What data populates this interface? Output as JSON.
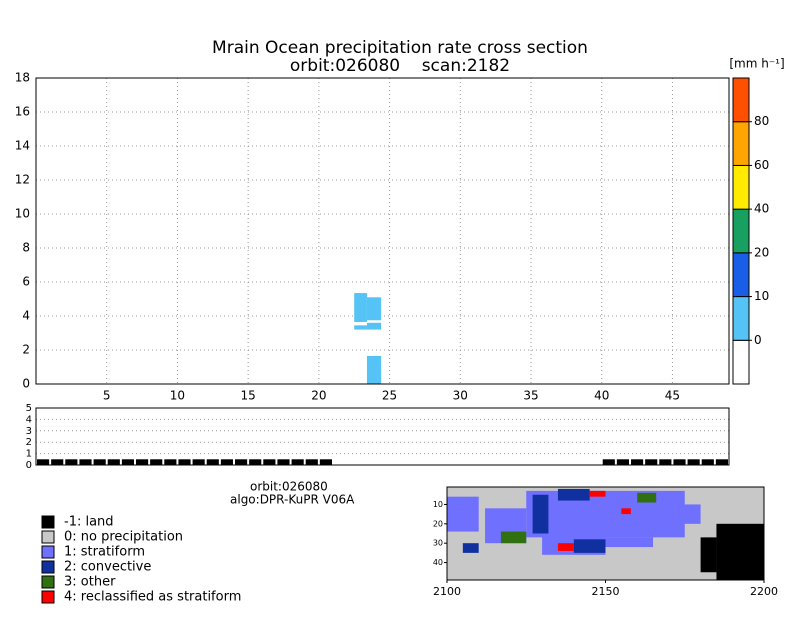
{
  "chart_data": [
    {
      "type": "heatmap",
      "title": [
        "Mrain Ocean precipitation rate cross section",
        "orbit:026080    scan:2182"
      ],
      "xlim": [
        0,
        49
      ],
      "xticks": [
        5,
        10,
        15,
        20,
        25,
        30,
        35,
        40,
        45
      ],
      "ylim": [
        0,
        18
      ],
      "yticks": [
        0,
        2,
        4,
        6,
        8,
        10,
        12,
        14,
        16,
        18
      ],
      "grid": true,
      "cells": [
        {
          "x0": 22.5,
          "x1": 23.4,
          "y0": 3.65,
          "y1": 5.35,
          "value": 5
        },
        {
          "x0": 23.4,
          "x1": 24.4,
          "y0": 3.75,
          "y1": 5.1,
          "value": 5
        },
        {
          "x0": 22.5,
          "x1": 23.4,
          "y0": 3.2,
          "y1": 3.45,
          "value": 5
        },
        {
          "x0": 23.4,
          "x1": 24.4,
          "y0": 3.2,
          "y1": 3.6,
          "value": 5
        },
        {
          "x0": 23.4,
          "x1": 24.4,
          "y0": 0,
          "y1": 1.65,
          "value": 5
        }
      ],
      "colorbar": {
        "unit": "[mm h⁻¹]",
        "levels": [
          0,
          10,
          20,
          40,
          60,
          80
        ],
        "colors": [
          "#ffffff",
          "#55c3f5",
          "#1a5ee8",
          "#17a060",
          "#ffeb00",
          "#ffa500",
          "#ff5000"
        ]
      }
    },
    {
      "type": "bar",
      "xlim": [
        0,
        49
      ],
      "ylim": [
        0,
        5
      ],
      "yticks": [
        0,
        1,
        2,
        3,
        4,
        5
      ],
      "grid": true,
      "color": "#000000",
      "x": [
        1,
        2,
        3,
        4,
        5,
        6,
        7,
        8,
        9,
        10,
        11,
        12,
        13,
        14,
        15,
        16,
        17,
        18,
        19,
        20,
        21,
        22,
        23,
        24,
        25,
        26,
        27,
        28,
        29,
        30,
        31,
        32,
        33,
        34,
        35,
        36,
        37,
        38,
        39,
        40,
        41,
        42,
        43,
        44,
        45,
        46,
        47,
        48,
        49
      ],
      "values": [
        0.5,
        0.5,
        0.5,
        0.5,
        0.5,
        0.5,
        0.5,
        0.5,
        0.5,
        0.5,
        0.5,
        0.5,
        0.5,
        0.5,
        0.5,
        0.5,
        0.5,
        0.5,
        0.5,
        0.5,
        0.5,
        0,
        0,
        0,
        0,
        0,
        0,
        0,
        0,
        0,
        0,
        0,
        0,
        0,
        0,
        0,
        0,
        0,
        0,
        0,
        0.5,
        0.5,
        0.5,
        0.5,
        0.5,
        0.5,
        0.5,
        0.5,
        0.5
      ]
    },
    {
      "type": "map",
      "annotations": [
        "orbit:026080",
        "algo:DPR-KuPR V06A"
      ],
      "xlim": [
        2100,
        2200
      ],
      "xticks": [
        2100,
        2150,
        2200
      ],
      "ylim": [
        49,
        1
      ],
      "yticks": [
        10,
        20,
        30,
        40
      ],
      "classes": [
        {
          "code": -1,
          "label": "-1: land",
          "color": "#000000"
        },
        {
          "code": 0,
          "label": "0: no precipitation",
          "color": "#c8c8c8"
        },
        {
          "code": 1,
          "label": "1: stratiform",
          "color": "#7070ff"
        },
        {
          "code": 2,
          "label": "2: convective",
          "color": "#1030a0"
        },
        {
          "code": 3,
          "label": "3: other",
          "color": "#307010"
        },
        {
          "code": 4,
          "label": "4: reclassified as stratiform",
          "color": "#ff0000"
        }
      ],
      "regions": [
        {
          "x0": 2100,
          "x1": 2200,
          "y0": 1,
          "y1": 49,
          "class": 0
        },
        {
          "x0": 2100,
          "x1": 2110,
          "y0": 6,
          "y1": 24,
          "class": 1
        },
        {
          "x0": 2112,
          "x1": 2125,
          "y0": 12,
          "y1": 30,
          "class": 1
        },
        {
          "x0": 2125,
          "x1": 2175,
          "y0": 3,
          "y1": 27,
          "class": 1
        },
        {
          "x0": 2130,
          "x1": 2150,
          "y0": 25,
          "y1": 36,
          "class": 1
        },
        {
          "x0": 2150,
          "x1": 2165,
          "y0": 27,
          "y1": 32,
          "class": 1
        },
        {
          "x0": 2160,
          "x1": 2180,
          "y0": 10,
          "y1": 20,
          "class": 1
        },
        {
          "x0": 2185,
          "x1": 2200,
          "y0": 20,
          "y1": 49,
          "class": -1
        },
        {
          "x0": 2180,
          "x1": 2185,
          "y0": 27,
          "y1": 45,
          "class": -1
        },
        {
          "x0": 2127,
          "x1": 2132,
          "y0": 5,
          "y1": 25,
          "class": 2
        },
        {
          "x0": 2135,
          "x1": 2145,
          "y0": 2,
          "y1": 8,
          "class": 2
        },
        {
          "x0": 2140,
          "x1": 2150,
          "y0": 28,
          "y1": 35,
          "class": 2
        },
        {
          "x0": 2105,
          "x1": 2110,
          "y0": 30,
          "y1": 35,
          "class": 2
        },
        {
          "x0": 2117,
          "x1": 2125,
          "y0": 24,
          "y1": 30,
          "class": 3
        },
        {
          "x0": 2160,
          "x1": 2166,
          "y0": 4,
          "y1": 9,
          "class": 3
        },
        {
          "x0": 2145,
          "x1": 2150,
          "y0": 3,
          "y1": 6,
          "class": 4
        },
        {
          "x0": 2135,
          "x1": 2140,
          "y0": 30,
          "y1": 34,
          "class": 4
        },
        {
          "x0": 2155,
          "x1": 2158,
          "y0": 12,
          "y1": 15,
          "class": 4
        }
      ]
    }
  ]
}
